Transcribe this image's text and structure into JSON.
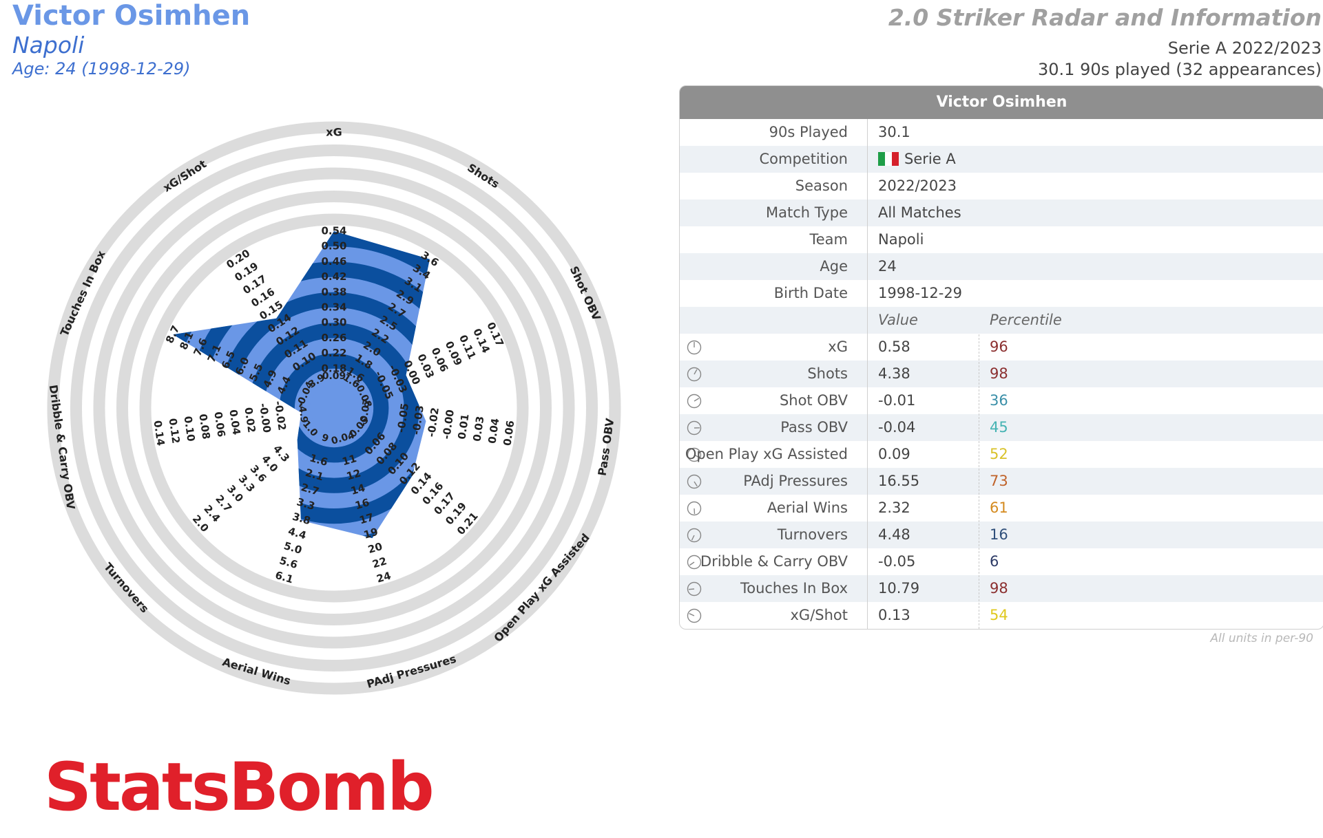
{
  "header": {
    "player_name": "Victor Osimhen",
    "team": "Napoli",
    "age_line": "Age: 24 (1998-12-29)",
    "report_title": "2.0 Striker Radar and Information",
    "competition_season": "Serie A 2022/2023",
    "minutes_line": "30.1 90s played (32 appearances)"
  },
  "colors": {
    "accent_light": "#6a97e6",
    "accent_dark": "#0b4f9e",
    "ring_grey": "#dcdcdc",
    "brand_red": "#e0202a"
  },
  "chart_data": {
    "type": "radar",
    "axes": [
      {
        "name": "xG",
        "ticks": [
          "0.18",
          "0.22",
          "0.26",
          "0.30",
          "0.34",
          "0.38",
          "0.42",
          "0.46",
          "0.50",
          "0.54"
        ],
        "min": 0.18,
        "max": 0.54,
        "value": 0.58
      },
      {
        "name": "Shots",
        "ticks": [
          "1.6",
          "1.8",
          "2.0",
          "2.2",
          "2.5",
          "2.7",
          "2.9",
          "3.1",
          "3.4",
          "3.6"
        ],
        "min": 1.6,
        "max": 3.6,
        "value": 4.38
      },
      {
        "name": "Shot OBV",
        "ticks": [
          "-0.05",
          "-0.03",
          "0.00",
          "0.03",
          "0.06",
          "0.09",
          "0.11",
          "0.14",
          "0.17"
        ],
        "min": -0.05,
        "max": 0.17,
        "value": -0.01
      },
      {
        "name": "Pass OBV",
        "ticks": [
          "-0.05",
          "-0.03",
          "-0.02",
          "-0.00",
          "0.01",
          "0.03",
          "0.04",
          "0.06"
        ],
        "min": -0.05,
        "max": 0.06,
        "value": -0.04
      },
      {
        "name": "Open Play xG Assisted",
        "ticks": [
          "0.06",
          "0.08",
          "0.10",
          "0.12",
          "0.14",
          "0.16",
          "0.17",
          "0.19",
          "0.21"
        ],
        "min": 0.04,
        "max": 0.21,
        "value": 0.09
      },
      {
        "name": "PAdj Pressures",
        "ticks": [
          "11",
          "12",
          "14",
          "16",
          "17",
          "19",
          "20",
          "22",
          "24"
        ],
        "min": 9,
        "max": 24,
        "value": 16.55
      },
      {
        "name": "Aerial Wins",
        "ticks": [
          "1.6",
          "2.1",
          "2.7",
          "3.3",
          "3.8",
          "4.4",
          "5.0",
          "5.6",
          "6.1"
        ],
        "min": 1.0,
        "max": 6.1,
        "value": 2.32
      },
      {
        "name": "Turnovers",
        "ticks": [
          "4.3",
          "4.0",
          "3.6",
          "3.3",
          "3.0",
          "2.7",
          "2.4",
          "2.0"
        ],
        "min": 4.6,
        "max": 2.0,
        "value": 4.48
      },
      {
        "name": "Dribble & Carry OBV",
        "ticks": [
          "-0.02",
          "-0.00",
          "0.02",
          "0.04",
          "0.06",
          "0.08",
          "0.10",
          "0.12",
          "0.14"
        ],
        "min": -0.04,
        "max": 0.14,
        "value": -0.05
      },
      {
        "name": "Touches In Box",
        "ticks": [
          "4.4",
          "4.9",
          "5.5",
          "6.0",
          "6.5",
          "7.1",
          "7.6",
          "8.1",
          "8.7"
        ],
        "min": 3.9,
        "max": 8.7,
        "value": 10.79
      },
      {
        "name": "xG/Shot",
        "ticks": [
          "0.10",
          "0.11",
          "0.12",
          "0.14",
          "0.15",
          "0.16",
          "0.17",
          "0.19",
          "0.20"
        ],
        "min": 0.09,
        "max": 0.2,
        "value": 0.13
      }
    ],
    "center_labels": [
      "0.09",
      "1.6",
      "-0.08",
      "-0.07",
      "-0.05",
      "0.04",
      "9",
      "1.0",
      "-4.9",
      "-0.04",
      "3.9"
    ],
    "fills": [
      {
        "axis": "xG",
        "fraction": 1.0
      },
      {
        "axis": "Shots",
        "fraction": 1.0
      },
      {
        "axis": "Shot OBV",
        "fraction": 0.36
      },
      {
        "axis": "Pass OBV",
        "fraction": 0.45
      },
      {
        "axis": "Open Play xG Assisted",
        "fraction": 0.52
      },
      {
        "axis": "PAdj Pressures",
        "fraction": 0.73
      },
      {
        "axis": "Aerial Wins",
        "fraction": 0.61
      },
      {
        "axis": "Turnovers",
        "fraction": 0.16
      },
      {
        "axis": "Dribble & Carry OBV",
        "fraction": 0.06
      },
      {
        "axis": "Touches In Box",
        "fraction": 1.0
      },
      {
        "axis": "xG/Shot",
        "fraction": 0.54
      }
    ]
  },
  "table": {
    "title": "Victor Osimhen",
    "info_rows": [
      {
        "label": "90s Played",
        "value": "30.1"
      },
      {
        "label": "Competition",
        "value": "Serie A",
        "flag": [
          "#1f9e48",
          "#ffffff",
          "#d5202b"
        ]
      },
      {
        "label": "Season",
        "value": "2022/2023"
      },
      {
        "label": "Match Type",
        "value": "All Matches"
      },
      {
        "label": "Team",
        "value": "Napoli"
      },
      {
        "label": "Age",
        "value": "24"
      },
      {
        "label": "Birth Date",
        "value": "1998-12-29"
      }
    ],
    "value_header": "Value",
    "percentile_header": "Percentile",
    "stat_rows": [
      {
        "label": "xG",
        "value": "0.58",
        "percentile": "96",
        "color": "#8b2f2f"
      },
      {
        "label": "Shots",
        "value": "4.38",
        "percentile": "98",
        "color": "#8b2f2f"
      },
      {
        "label": "Shot OBV",
        "value": "-0.01",
        "percentile": "36",
        "color": "#3a8fa8"
      },
      {
        "label": "Pass OBV",
        "value": "-0.04",
        "percentile": "45",
        "color": "#45b3b3"
      },
      {
        "label": "Open Play xG Assisted",
        "value": "0.09",
        "percentile": "52",
        "color": "#d9c22a"
      },
      {
        "label": "PAdj Pressures",
        "value": "16.55",
        "percentile": "73",
        "color": "#c0632a"
      },
      {
        "label": "Aerial Wins",
        "value": "2.32",
        "percentile": "61",
        "color": "#d48a1f"
      },
      {
        "label": "Turnovers",
        "value": "4.48",
        "percentile": "16",
        "color": "#2f4f7a"
      },
      {
        "label": "Dribble & Carry OBV",
        "value": "-0.05",
        "percentile": "6",
        "color": "#2c3a66"
      },
      {
        "label": "Touches In Box",
        "value": "10.79",
        "percentile": "98",
        "color": "#8b2f2f"
      },
      {
        "label": "xG/Shot",
        "value": "0.13",
        "percentile": "54",
        "color": "#e0c81e"
      }
    ],
    "footnote": "All units in per-90"
  },
  "brand": {
    "logo_text": "StatsBomb"
  }
}
